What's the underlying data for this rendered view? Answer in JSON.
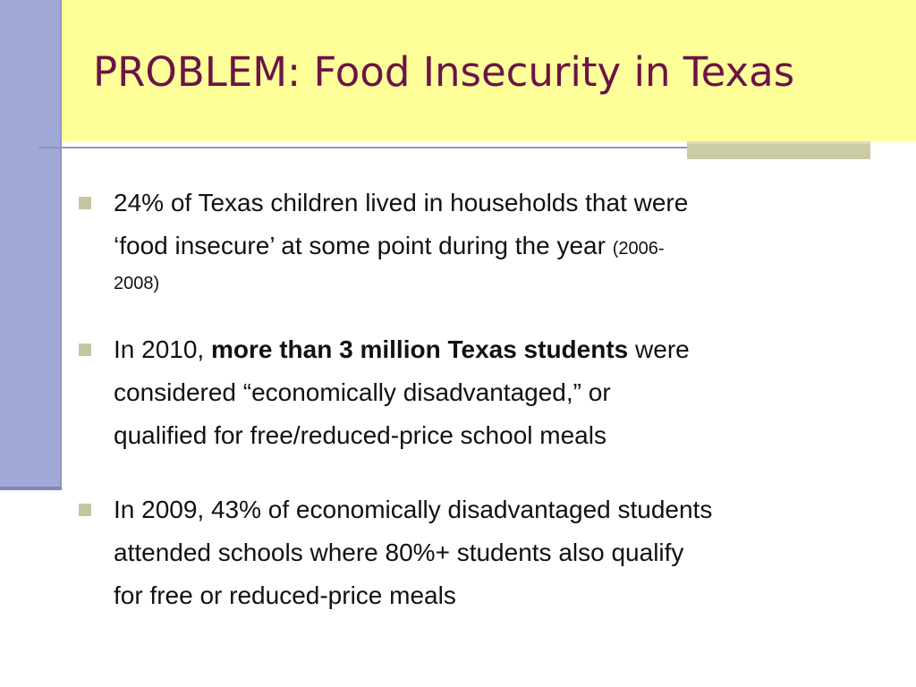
{
  "title": "PROBLEM: Food Insecurity in Texas",
  "colors": {
    "title": "#6b1446",
    "title_band": "#ffff99",
    "left_bar": "#a0a8d6",
    "bullet_marker": "#c6c6a2"
  },
  "bullets": [
    {
      "line1": "24% of Texas children lived in households that were",
      "line2": "‘food insecure’ at some point during the year ",
      "note_a": "(2006-",
      "note_b": "2008)"
    },
    {
      "pre": "In 2010, ",
      "bold": "more than 3 million Texas students",
      "post": " were",
      "line2": "considered “economically disadvantaged,” or",
      "line3": "qualified for free/reduced-price school meals"
    },
    {
      "line1": "In 2009, 43% of economically disadvantaged students",
      "line2": "attended schools where 80%+ students also qualify",
      "line3": "for free or reduced-price meals"
    }
  ]
}
